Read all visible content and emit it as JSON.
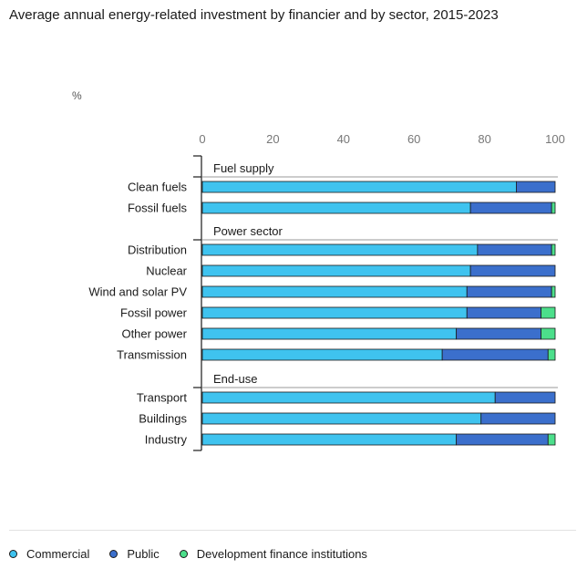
{
  "chart_data": {
    "type": "bar",
    "orientation": "horizontal",
    "stacked": true,
    "title": "Average annual energy-related investment by financier and by sector, 2015-2023",
    "unit": "%",
    "xlim": [
      0,
      100
    ],
    "xticks": [
      "0",
      "20",
      "40",
      "60",
      "80",
      "100"
    ],
    "grid": false,
    "legend_position": "bottom",
    "groups": [
      {
        "label": "Fuel supply",
        "categories": [
          "Clean fuels",
          "Fossil fuels"
        ]
      },
      {
        "label": "Power sector",
        "categories": [
          "Distribution",
          "Nuclear",
          "Wind and solar PV",
          "Fossil power",
          "Other power",
          "Transmission"
        ]
      },
      {
        "label": "End-use",
        "categories": [
          "Transport",
          "Buildings",
          "Industry"
        ]
      }
    ],
    "categories": [
      "Clean fuels",
      "Fossil fuels",
      "Distribution",
      "Nuclear",
      "Wind and solar PV",
      "Fossil power",
      "Other power",
      "Transmission",
      "Transport",
      "Buildings",
      "Industry"
    ],
    "series": [
      {
        "name": "Commercial",
        "color": "#3fc3ef",
        "values": [
          89,
          76,
          78,
          76,
          75,
          75,
          72,
          68,
          83,
          79,
          72
        ]
      },
      {
        "name": "Public",
        "color": "#3b6fcc",
        "values": [
          11,
          23,
          21,
          24,
          24,
          21,
          24,
          30,
          17,
          21,
          26
        ]
      },
      {
        "name": "Development finance institutions",
        "color": "#4cdf8b",
        "values": [
          0,
          1,
          1,
          0,
          1,
          4,
          4,
          2,
          0,
          0,
          2
        ]
      }
    ]
  }
}
